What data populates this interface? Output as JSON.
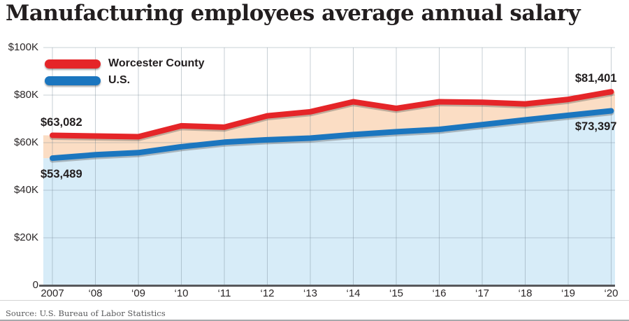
{
  "title": "Manufacturing employees average annual salary",
  "source": "Source: U.S. Bureau of Labor Statistics",
  "legend": {
    "items": [
      {
        "label": "Worcester County",
        "color": "#e52528"
      },
      {
        "label": "U.S.",
        "color": "#1b76bf"
      }
    ]
  },
  "chart_data": {
    "type": "line",
    "title": "Manufacturing employees average annual salary",
    "categories": [
      "2007",
      "‘08",
      "‘09",
      "‘10",
      "‘11",
      "‘12",
      "‘13",
      "‘14",
      "‘15",
      "‘16",
      "‘17",
      "‘18",
      "‘19",
      "‘20"
    ],
    "series": [
      {
        "name": "Worcester County",
        "color": "#e52528",
        "values": [
          63082,
          62800,
          62500,
          67100,
          66500,
          71300,
          73000,
          77200,
          74400,
          77200,
          77000,
          76300,
          78200,
          81401
        ]
      },
      {
        "name": "U.S.",
        "color": "#1b76bf",
        "values": [
          53489,
          54900,
          55800,
          58300,
          60200,
          61200,
          61900,
          63400,
          64600,
          65600,
          67600,
          69600,
          71500,
          73397
        ]
      }
    ],
    "fills": {
      "between_series": "#fbddc4",
      "below_us": "#d7ecf8"
    },
    "ylim": [
      0,
      100000
    ],
    "y_ticks": [
      {
        "label": "$100K",
        "value": 100000
      },
      {
        "label": "$80K",
        "value": 80000
      },
      {
        "label": "$60K",
        "value": 60000
      },
      {
        "label": "$40K",
        "value": 40000
      },
      {
        "label": "$20K",
        "value": 20000
      },
      {
        "label": "0",
        "value": 0
      }
    ],
    "grid": true,
    "legend_position": "top-left",
    "point_labels": [
      {
        "series": 0,
        "point": 0,
        "text": "$63,082",
        "placement": "above"
      },
      {
        "series": 1,
        "point": 0,
        "text": "$53,489",
        "placement": "below"
      },
      {
        "series": 0,
        "point": 13,
        "text": "$81,401",
        "placement": "above"
      },
      {
        "series": 1,
        "point": 13,
        "text": "$73,397",
        "placement": "below"
      }
    ]
  }
}
